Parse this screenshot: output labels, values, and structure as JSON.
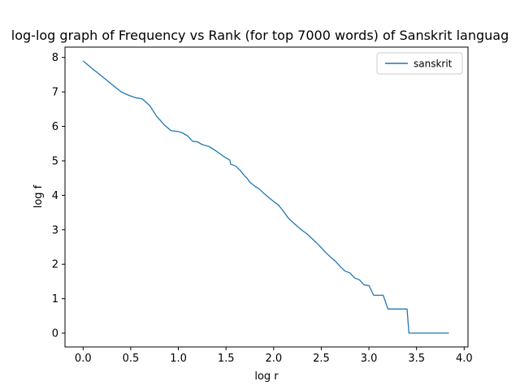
{
  "chart_data": {
    "type": "line",
    "title": "log-log graph of Frequency vs Rank (for top 7000 words) of Sanskrit languag",
    "xlabel": "log r",
    "ylabel": "log f",
    "xlim": [
      -0.19,
      4.04
    ],
    "ylim": [
      -0.4,
      8.3
    ],
    "xticks": [
      0.0,
      0.5,
      1.0,
      1.5,
      2.0,
      2.5,
      3.0,
      3.5,
      4.0
    ],
    "xtick_labels": [
      "0.0",
      "0.5",
      "1.0",
      "1.5",
      "2.0",
      "2.5",
      "3.0",
      "3.5",
      "4.0"
    ],
    "yticks": [
      0,
      1,
      2,
      3,
      4,
      5,
      6,
      7,
      8
    ],
    "ytick_labels": [
      "0",
      "1",
      "2",
      "3",
      "4",
      "5",
      "6",
      "7",
      "8"
    ],
    "grid": false,
    "legend_position": "top-right",
    "series": [
      {
        "name": "sanskrit",
        "color": "#1f77b4",
        "x": [
          0.0,
          0.1,
          0.2,
          0.3,
          0.4,
          0.48,
          0.55,
          0.62,
          0.7,
          0.77,
          0.85,
          0.92,
          0.97,
          1.0,
          1.05,
          1.1,
          1.13,
          1.15,
          1.2,
          1.25,
          1.32,
          1.4,
          1.48,
          1.54,
          1.55,
          1.6,
          1.65,
          1.7,
          1.72,
          1.75,
          1.8,
          1.85,
          1.9,
          1.95,
          2.0,
          2.05,
          2.1,
          2.15,
          2.2,
          2.25,
          2.3,
          2.35,
          2.4,
          2.45,
          2.5,
          2.55,
          2.6,
          2.65,
          2.7,
          2.75,
          2.8,
          2.85,
          2.9,
          2.95,
          3.0,
          3.05,
          3.1,
          3.15,
          3.2,
          3.3,
          3.4,
          3.42,
          3.6,
          3.84
        ],
        "y": [
          7.9,
          7.67,
          7.45,
          7.22,
          7.0,
          6.9,
          6.83,
          6.8,
          6.6,
          6.3,
          6.05,
          5.88,
          5.86,
          5.85,
          5.8,
          5.72,
          5.62,
          5.57,
          5.55,
          5.47,
          5.42,
          5.28,
          5.12,
          5.02,
          4.9,
          4.85,
          4.72,
          4.55,
          4.5,
          4.38,
          4.27,
          4.18,
          4.05,
          3.93,
          3.82,
          3.72,
          3.55,
          3.35,
          3.22,
          3.1,
          2.98,
          2.88,
          2.75,
          2.62,
          2.48,
          2.33,
          2.2,
          2.08,
          1.93,
          1.8,
          1.75,
          1.6,
          1.55,
          1.4,
          1.38,
          1.1,
          1.1,
          1.1,
          0.7,
          0.7,
          0.7,
          0.0,
          0.0,
          0.0
        ]
      }
    ]
  }
}
